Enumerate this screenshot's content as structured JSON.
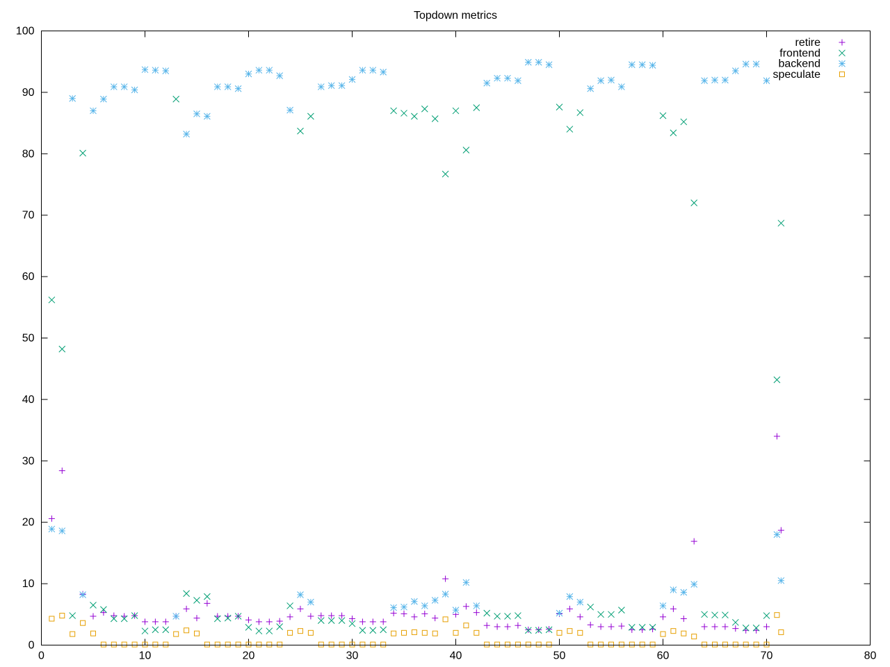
{
  "chart_data": {
    "type": "scatter",
    "title": "Topdown metrics",
    "xlabel": "",
    "ylabel": "",
    "xlim": [
      0,
      80
    ],
    "ylim": [
      0,
      100
    ],
    "xticks": [
      0,
      10,
      20,
      30,
      40,
      50,
      60,
      70,
      80
    ],
    "yticks": [
      0,
      10,
      20,
      30,
      40,
      50,
      60,
      70,
      80,
      90,
      100
    ],
    "grid": false,
    "legend_position": "top-right",
    "series": [
      {
        "name": "retire",
        "color": "#9400d3",
        "marker": "plus",
        "points": [
          [
            1,
            20.6
          ],
          [
            2,
            28.4
          ],
          [
            4,
            8.3
          ],
          [
            5,
            4.7
          ],
          [
            6,
            5.3
          ],
          [
            7,
            4.8
          ],
          [
            8,
            4.7
          ],
          [
            9,
            4.8
          ],
          [
            10,
            3.8
          ],
          [
            11,
            3.8
          ],
          [
            12,
            3.8
          ],
          [
            13,
            4.7
          ],
          [
            14,
            5.9
          ],
          [
            15,
            4.4
          ],
          [
            16,
            6.8
          ],
          [
            17,
            4.7
          ],
          [
            18,
            4.7
          ],
          [
            19,
            4.7
          ],
          [
            20,
            4.1
          ],
          [
            21,
            3.8
          ],
          [
            22,
            3.8
          ],
          [
            23,
            3.9
          ],
          [
            24,
            4.6
          ],
          [
            25,
            5.9
          ],
          [
            26,
            4.7
          ],
          [
            27,
            4.8
          ],
          [
            28,
            4.8
          ],
          [
            29,
            4.8
          ],
          [
            30,
            4.3
          ],
          [
            31,
            3.8
          ],
          [
            32,
            3.8
          ],
          [
            33,
            3.8
          ],
          [
            34,
            5.2
          ],
          [
            35,
            5.1
          ],
          [
            36,
            4.6
          ],
          [
            37,
            5.1
          ],
          [
            38,
            4.4
          ],
          [
            39,
            10.8
          ],
          [
            40,
            5.0
          ],
          [
            41,
            6.3
          ],
          [
            42,
            5.3
          ],
          [
            43,
            3.2
          ],
          [
            44,
            3.0
          ],
          [
            45,
            3.0
          ],
          [
            46,
            3.2
          ],
          [
            47,
            2.5
          ],
          [
            48,
            2.5
          ],
          [
            49,
            2.6
          ],
          [
            50,
            5.1
          ],
          [
            51,
            5.9
          ],
          [
            52,
            4.6
          ],
          [
            53,
            3.3
          ],
          [
            54,
            3.0
          ],
          [
            55,
            3.0
          ],
          [
            56,
            3.1
          ],
          [
            57,
            2.5
          ],
          [
            58,
            2.5
          ],
          [
            59,
            2.6
          ],
          [
            60,
            4.6
          ],
          [
            61,
            5.9
          ],
          [
            62,
            4.3
          ],
          [
            63,
            16.9
          ],
          [
            64,
            3.0
          ],
          [
            65,
            3.0
          ],
          [
            66,
            3.0
          ],
          [
            67,
            2.7
          ],
          [
            68,
            2.4
          ],
          [
            69,
            2.4
          ],
          [
            70,
            3.0
          ],
          [
            71,
            34.0
          ],
          [
            71.4,
            18.7
          ]
        ]
      },
      {
        "name": "frontend",
        "color": "#009e73",
        "marker": "cross",
        "points": [
          [
            1,
            56.2
          ],
          [
            2,
            48.2
          ],
          [
            3,
            4.8
          ],
          [
            4,
            80.1
          ],
          [
            5,
            6.5
          ],
          [
            6,
            5.8
          ],
          [
            7,
            4.3
          ],
          [
            8,
            4.3
          ],
          [
            9,
            4.8
          ],
          [
            10,
            2.3
          ],
          [
            11,
            2.5
          ],
          [
            12,
            2.5
          ],
          [
            13,
            88.9
          ],
          [
            14,
            8.4
          ],
          [
            15,
            7.3
          ],
          [
            16,
            7.9
          ],
          [
            17,
            4.3
          ],
          [
            18,
            4.4
          ],
          [
            19,
            4.7
          ],
          [
            20,
            2.9
          ],
          [
            21,
            2.3
          ],
          [
            22,
            2.3
          ],
          [
            23,
            3.0
          ],
          [
            24,
            6.4
          ],
          [
            25,
            83.7
          ],
          [
            26,
            86.1
          ],
          [
            27,
            4.0
          ],
          [
            28,
            4.0
          ],
          [
            29,
            4.0
          ],
          [
            30,
            3.5
          ],
          [
            31,
            2.4
          ],
          [
            32,
            2.4
          ],
          [
            33,
            2.5
          ],
          [
            34,
            87.0
          ],
          [
            35,
            86.6
          ],
          [
            36,
            86.1
          ],
          [
            37,
            87.3
          ],
          [
            38,
            85.7
          ],
          [
            39,
            76.7
          ],
          [
            40,
            87.0
          ],
          [
            41,
            80.6
          ],
          [
            42,
            87.5
          ],
          [
            43,
            5.2
          ],
          [
            44,
            4.7
          ],
          [
            45,
            4.7
          ],
          [
            46,
            4.8
          ],
          [
            47,
            2.4
          ],
          [
            48,
            2.4
          ],
          [
            49,
            2.5
          ],
          [
            50,
            87.6
          ],
          [
            51,
            84.0
          ],
          [
            52,
            86.7
          ],
          [
            53,
            6.2
          ],
          [
            54,
            5.0
          ],
          [
            55,
            5.0
          ],
          [
            56,
            5.7
          ],
          [
            57,
            2.9
          ],
          [
            58,
            2.9
          ],
          [
            59,
            2.9
          ],
          [
            60,
            86.2
          ],
          [
            61,
            83.4
          ],
          [
            62,
            85.2
          ],
          [
            63,
            72.0
          ],
          [
            64,
            5.0
          ],
          [
            65,
            4.9
          ],
          [
            66,
            4.9
          ],
          [
            67,
            3.7
          ],
          [
            68,
            2.8
          ],
          [
            69,
            2.8
          ],
          [
            70,
            4.8
          ],
          [
            71,
            43.2
          ],
          [
            71.4,
            68.7
          ]
        ]
      },
      {
        "name": "backend",
        "color": "#56b4e9",
        "marker": "star",
        "points": [
          [
            1,
            18.9
          ],
          [
            2,
            18.6
          ],
          [
            3,
            89.0
          ],
          [
            4,
            8.2
          ],
          [
            5,
            87.0
          ],
          [
            6,
            88.9
          ],
          [
            7,
            90.9
          ],
          [
            8,
            90.9
          ],
          [
            9,
            90.4
          ],
          [
            10,
            93.7
          ],
          [
            11,
            93.6
          ],
          [
            12,
            93.5
          ],
          [
            13,
            4.7
          ],
          [
            14,
            83.2
          ],
          [
            15,
            86.5
          ],
          [
            16,
            86.1
          ],
          [
            17,
            90.9
          ],
          [
            18,
            90.9
          ],
          [
            19,
            90.6
          ],
          [
            20,
            93.0
          ],
          [
            21,
            93.6
          ],
          [
            22,
            93.6
          ],
          [
            23,
            92.7
          ],
          [
            24,
            87.1
          ],
          [
            25,
            8.2
          ],
          [
            26,
            7.0
          ],
          [
            27,
            90.9
          ],
          [
            28,
            91.1
          ],
          [
            29,
            91.1
          ],
          [
            30,
            92.1
          ],
          [
            31,
            93.6
          ],
          [
            32,
            93.6
          ],
          [
            33,
            93.3
          ],
          [
            34,
            6.1
          ],
          [
            35,
            6.2
          ],
          [
            36,
            7.1
          ],
          [
            37,
            6.4
          ],
          [
            38,
            7.3
          ],
          [
            39,
            8.3
          ],
          [
            40,
            5.7
          ],
          [
            41,
            10.2
          ],
          [
            42,
            6.4
          ],
          [
            43,
            91.5
          ],
          [
            44,
            92.3
          ],
          [
            45,
            92.3
          ],
          [
            46,
            91.9
          ],
          [
            47,
            94.9
          ],
          [
            48,
            94.9
          ],
          [
            49,
            94.5
          ],
          [
            50,
            5.2
          ],
          [
            51,
            7.9
          ],
          [
            52,
            7.0
          ],
          [
            53,
            90.6
          ],
          [
            54,
            91.9
          ],
          [
            55,
            92.0
          ],
          [
            56,
            90.9
          ],
          [
            57,
            94.5
          ],
          [
            58,
            94.5
          ],
          [
            59,
            94.4
          ],
          [
            60,
            6.4
          ],
          [
            61,
            9.0
          ],
          [
            62,
            8.6
          ],
          [
            63,
            9.9
          ],
          [
            64,
            91.9
          ],
          [
            65,
            92.0
          ],
          [
            66,
            92.0
          ],
          [
            67,
            93.5
          ],
          [
            68,
            94.6
          ],
          [
            69,
            94.6
          ],
          [
            70,
            91.9
          ],
          [
            71,
            18.0
          ],
          [
            71.4,
            10.5
          ]
        ]
      },
      {
        "name": "speculate",
        "color": "#e69f00",
        "marker": "square",
        "points": [
          [
            1,
            4.3
          ],
          [
            2,
            4.8
          ],
          [
            3,
            1.8
          ],
          [
            4,
            3.6
          ],
          [
            5,
            1.9
          ],
          [
            6,
            0.1
          ],
          [
            7,
            0.1
          ],
          [
            8,
            0.1
          ],
          [
            9,
            0.1
          ],
          [
            10,
            0.1
          ],
          [
            11,
            0.1
          ],
          [
            12,
            0.1
          ],
          [
            13,
            1.8
          ],
          [
            14,
            2.4
          ],
          [
            15,
            1.9
          ],
          [
            16,
            0.1
          ],
          [
            17,
            0.1
          ],
          [
            18,
            0.1
          ],
          [
            19,
            0.1
          ],
          [
            20,
            0.1
          ],
          [
            21,
            0.1
          ],
          [
            22,
            0.1
          ],
          [
            23,
            0.1
          ],
          [
            24,
            2.0
          ],
          [
            25,
            2.3
          ],
          [
            26,
            2.0
          ],
          [
            27,
            0.1
          ],
          [
            28,
            0.1
          ],
          [
            29,
            0.1
          ],
          [
            30,
            0.1
          ],
          [
            31,
            0.1
          ],
          [
            32,
            0.1
          ],
          [
            33,
            0.1
          ],
          [
            34,
            1.9
          ],
          [
            35,
            2.0
          ],
          [
            36,
            2.1
          ],
          [
            37,
            2.0
          ],
          [
            38,
            1.9
          ],
          [
            39,
            4.2
          ],
          [
            40,
            2.0
          ],
          [
            41,
            3.2
          ],
          [
            42,
            2.0
          ],
          [
            43,
            0.1
          ],
          [
            44,
            0.1
          ],
          [
            45,
            0.1
          ],
          [
            46,
            0.1
          ],
          [
            47,
            0.1
          ],
          [
            48,
            0.1
          ],
          [
            49,
            0.1
          ],
          [
            50,
            2.0
          ],
          [
            51,
            2.3
          ],
          [
            52,
            2.0
          ],
          [
            53,
            0.1
          ],
          [
            54,
            0.1
          ],
          [
            55,
            0.1
          ],
          [
            56,
            0.1
          ],
          [
            57,
            0.1
          ],
          [
            58,
            0.1
          ],
          [
            59,
            0.1
          ],
          [
            60,
            1.8
          ],
          [
            61,
            2.3
          ],
          [
            62,
            1.9
          ],
          [
            63,
            1.4
          ],
          [
            64,
            0.1
          ],
          [
            65,
            0.1
          ],
          [
            66,
            0.1
          ],
          [
            67,
            0.1
          ],
          [
            68,
            0.1
          ],
          [
            69,
            0.1
          ],
          [
            70,
            0.1
          ],
          [
            71,
            4.9
          ],
          [
            71.4,
            2.1
          ]
        ]
      }
    ]
  }
}
